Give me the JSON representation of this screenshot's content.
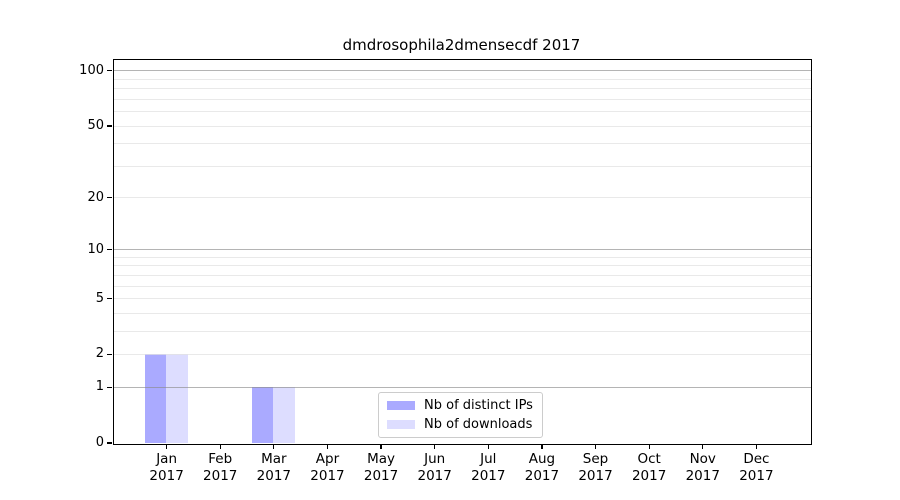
{
  "chart_data": {
    "type": "bar",
    "title": "dmdrosophila2dmensecdf 2017",
    "categories": [
      {
        "month": "Jan",
        "year": "2017"
      },
      {
        "month": "Feb",
        "year": "2017"
      },
      {
        "month": "Mar",
        "year": "2017"
      },
      {
        "month": "Apr",
        "year": "2017"
      },
      {
        "month": "May",
        "year": "2017"
      },
      {
        "month": "Jun",
        "year": "2017"
      },
      {
        "month": "Jul",
        "year": "2017"
      },
      {
        "month": "Aug",
        "year": "2017"
      },
      {
        "month": "Sep",
        "year": "2017"
      },
      {
        "month": "Oct",
        "year": "2017"
      },
      {
        "month": "Nov",
        "year": "2017"
      },
      {
        "month": "Dec",
        "year": "2017"
      }
    ],
    "series": [
      {
        "name": "Nb of distinct IPs",
        "color": "#aaaaff",
        "values": [
          2,
          0,
          1,
          0,
          0,
          0,
          0,
          0,
          0,
          0,
          0,
          0
        ]
      },
      {
        "name": "Nb of downloads",
        "color": "#ddddff",
        "values": [
          2,
          0,
          1,
          0,
          0,
          0,
          0,
          0,
          0,
          0,
          0,
          0
        ]
      }
    ],
    "xlabel": "",
    "ylabel": "",
    "yscale": "log1p",
    "ylim": [
      0,
      116
    ],
    "yticks": [
      0,
      1,
      2,
      5,
      10,
      20,
      50,
      100
    ],
    "grid": {
      "major_values": [
        1,
        10,
        100
      ],
      "minor_values": [
        2,
        3,
        4,
        5,
        6,
        7,
        8,
        9,
        20,
        30,
        40,
        50,
        60,
        70,
        80,
        90
      ],
      "on": true
    },
    "legend": {
      "position": "lower center",
      "border_color": "#cccccc"
    },
    "axis_color": "#000000",
    "background_color": "#ffffff"
  }
}
